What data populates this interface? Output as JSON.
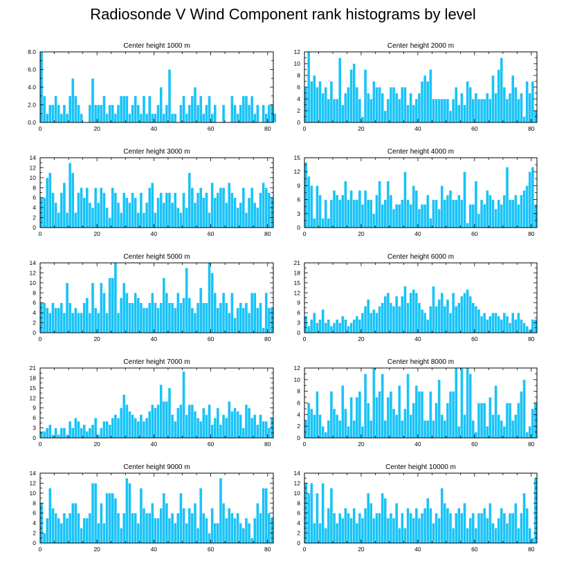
{
  "title": "Radiosonde V Wind Component rank histograms by level",
  "colors": {
    "bar": "#19c3f7",
    "bar_edge": "#ffffff",
    "frame": "#000000"
  },
  "chart_data": [
    {
      "type": "bar",
      "title": "Center height 1000 m",
      "xlim": [
        0,
        82
      ],
      "xticks": [
        0,
        20,
        40,
        60,
        80
      ],
      "ylim": [
        0,
        8
      ],
      "yticks": [
        0,
        2,
        4,
        6,
        8
      ],
      "ytick_labels": [
        "0.0",
        "2.0",
        "4.0",
        "6.0",
        "8.0"
      ],
      "values": [
        8,
        3,
        1,
        2,
        2,
        3,
        2,
        1,
        2,
        1,
        3,
        5,
        3,
        2,
        1,
        0,
        0,
        2,
        5,
        2,
        2,
        2,
        3,
        1,
        2,
        2,
        1,
        2,
        3,
        3,
        3,
        1,
        2,
        3,
        2,
        1,
        3,
        1,
        3,
        1,
        1,
        2,
        4,
        1,
        2,
        6,
        1,
        1,
        0,
        2,
        3,
        1,
        2,
        3,
        4,
        2,
        3,
        1,
        2,
        3,
        1,
        2,
        0,
        0,
        2,
        0,
        0,
        3,
        2,
        1,
        2,
        3,
        3,
        2,
        3,
        1,
        2,
        0,
        2,
        1,
        2,
        2,
        1
      ]
    },
    {
      "type": "bar",
      "title": "Center height 2000 m",
      "xlim": [
        0,
        82
      ],
      "xticks": [
        0,
        20,
        40,
        60,
        80
      ],
      "ylim": [
        0,
        12
      ],
      "yticks": [
        0,
        2,
        4,
        6,
        8,
        10,
        12
      ],
      "ytick_labels": [
        "0",
        "2",
        "4",
        "6",
        "8",
        "10",
        "12"
      ],
      "values": [
        6,
        12,
        7,
        8,
        6,
        7,
        5,
        6,
        4,
        7,
        4,
        4,
        11,
        3,
        5,
        6,
        9,
        10,
        6,
        4,
        1,
        9,
        5,
        4,
        7,
        6,
        6,
        5,
        2,
        4,
        6,
        6,
        5,
        4,
        6,
        6,
        3,
        5,
        3,
        4,
        5,
        7,
        8,
        7,
        9,
        4,
        4,
        4,
        4,
        4,
        4,
        2,
        4,
        6,
        3,
        5,
        3,
        7,
        6,
        4,
        5,
        4,
        4,
        4,
        5,
        4,
        8,
        5,
        9,
        11,
        6,
        4,
        5,
        8,
        6,
        4,
        5,
        1,
        7,
        5,
        7,
        2
      ]
    },
    {
      "type": "bar",
      "title": "Center height 3000 m",
      "xlim": [
        0,
        82
      ],
      "xticks": [
        0,
        20,
        40,
        60,
        80
      ],
      "ylim": [
        0,
        14
      ],
      "yticks": [
        0,
        2,
        4,
        6,
        8,
        10,
        12,
        14
      ],
      "ytick_labels": [
        "0",
        "2",
        "4",
        "6",
        "8",
        "10",
        "12",
        "14"
      ],
      "values": [
        6,
        6,
        10,
        11,
        7,
        5,
        3,
        7,
        9,
        3,
        13,
        11,
        3,
        7,
        8,
        6,
        8,
        5,
        4,
        8,
        5,
        8,
        7,
        4,
        2,
        8,
        7,
        5,
        3,
        7,
        6,
        5,
        7,
        6,
        3,
        7,
        3,
        5,
        8,
        9,
        3,
        6,
        7,
        5,
        7,
        7,
        5,
        7,
        4,
        3,
        7,
        4,
        11,
        8,
        5,
        7,
        8,
        6,
        7,
        3,
        9,
        6,
        7,
        8,
        8,
        5,
        9,
        7,
        6,
        4,
        5,
        8,
        3,
        6,
        8,
        5,
        4,
        7,
        9,
        8,
        7,
        6
      ]
    },
    {
      "type": "bar",
      "title": "Center height 4000 m",
      "xlim": [
        0,
        82
      ],
      "xticks": [
        0,
        20,
        40,
        60,
        80
      ],
      "ylim": [
        0,
        15
      ],
      "yticks": [
        0,
        3,
        6,
        9,
        12,
        15
      ],
      "ytick_labels": [
        "0",
        "3",
        "6",
        "9",
        "12",
        "15"
      ],
      "values": [
        14,
        11,
        9,
        2,
        9,
        7,
        2,
        6,
        2,
        6,
        8,
        7,
        6,
        7,
        10,
        6,
        8,
        6,
        6,
        8,
        5,
        8,
        6,
        6,
        3,
        7,
        10,
        5,
        6,
        10,
        7,
        4,
        5,
        5,
        6,
        12,
        6,
        5,
        9,
        8,
        4,
        5,
        5,
        7,
        2,
        6,
        6,
        4,
        9,
        6,
        7,
        8,
        6,
        6,
        7,
        6,
        12,
        1,
        5,
        5,
        10,
        3,
        6,
        5,
        8,
        7,
        6,
        4,
        6,
        5,
        7,
        13,
        6,
        6,
        7,
        5,
        7,
        8,
        9,
        12,
        13,
        5
      ]
    },
    {
      "type": "bar",
      "title": "Center height 5000 m",
      "xlim": [
        0,
        82
      ],
      "xticks": [
        0,
        20,
        40,
        60,
        80
      ],
      "ylim": [
        0,
        14
      ],
      "yticks": [
        0,
        2,
        4,
        6,
        8,
        10,
        12,
        14
      ],
      "ytick_labels": [
        "0",
        "2",
        "4",
        "6",
        "8",
        "10",
        "12",
        "14"
      ],
      "values": [
        6,
        6,
        5,
        4,
        6,
        5,
        5,
        6,
        4,
        10,
        6,
        4,
        5,
        4,
        4,
        6,
        7,
        4,
        10,
        5,
        4,
        10,
        8,
        4,
        11,
        11,
        14,
        4,
        7,
        10,
        8,
        6,
        6,
        8,
        7,
        6,
        5,
        5,
        6,
        8,
        6,
        5,
        6,
        11,
        8,
        6,
        6,
        5,
        8,
        6,
        7,
        13,
        7,
        5,
        4,
        6,
        9,
        6,
        6,
        14,
        12,
        8,
        5,
        6,
        8,
        6,
        4,
        8,
        3,
        5,
        6,
        5,
        6,
        4,
        8,
        8,
        5,
        6,
        1,
        8,
        5,
        5
      ]
    },
    {
      "type": "bar",
      "title": "Center height 6000 m",
      "xlim": [
        0,
        82
      ],
      "xticks": [
        0,
        20,
        40,
        60,
        80
      ],
      "ylim": [
        0,
        21
      ],
      "yticks": [
        0,
        3,
        6,
        9,
        12,
        15,
        18,
        21
      ],
      "ytick_labels": [
        "0",
        "3",
        "6",
        "9",
        "12",
        "15",
        "18",
        "21"
      ],
      "values": [
        5,
        2,
        4,
        6,
        3,
        4,
        7,
        3,
        4,
        2,
        3,
        4,
        3,
        5,
        4,
        2,
        3,
        4,
        5,
        4,
        6,
        8,
        10,
        6,
        7,
        6,
        8,
        9,
        11,
        12,
        9,
        8,
        11,
        8,
        11,
        14,
        9,
        12,
        13,
        12,
        9,
        7,
        6,
        4,
        8,
        14,
        8,
        10,
        12,
        8,
        10,
        6,
        12,
        8,
        9,
        11,
        12,
        13,
        11,
        9,
        8,
        7,
        5,
        6,
        4,
        5,
        6,
        6,
        5,
        4,
        6,
        5,
        3,
        6,
        4,
        6,
        4,
        3,
        2,
        1,
        4,
        4
      ]
    },
    {
      "type": "bar",
      "title": "Center height 7000 m",
      "xlim": [
        0,
        82
      ],
      "xticks": [
        0,
        20,
        40,
        60,
        80
      ],
      "ylim": [
        0,
        21
      ],
      "yticks": [
        0,
        3,
        6,
        9,
        12,
        15,
        18,
        21
      ],
      "ytick_labels": [
        "0",
        "3",
        "6",
        "9",
        "12",
        "15",
        "18",
        "21"
      ],
      "values": [
        2,
        2,
        3,
        4,
        1,
        3,
        1,
        3,
        3,
        1,
        5,
        3,
        6,
        5,
        3,
        4,
        2,
        3,
        4,
        6,
        1,
        3,
        5,
        5,
        4,
        6,
        7,
        6,
        9,
        13,
        10,
        8,
        7,
        6,
        5,
        7,
        5,
        6,
        8,
        10,
        9,
        10,
        16,
        11,
        11,
        15,
        7,
        5,
        9,
        10,
        20,
        7,
        10,
        10,
        8,
        6,
        5,
        9,
        7,
        10,
        4,
        6,
        9,
        4,
        7,
        6,
        11,
        8,
        9,
        8,
        7,
        3,
        10,
        9,
        6,
        7,
        4,
        7,
        5,
        5,
        3,
        6
      ]
    },
    {
      "type": "bar",
      "title": "Center height 8000 m",
      "xlim": [
        0,
        82
      ],
      "xticks": [
        0,
        20,
        40,
        60,
        80
      ],
      "ylim": [
        0,
        12
      ],
      "yticks": [
        0,
        2,
        4,
        6,
        8,
        10,
        12
      ],
      "ytick_labels": [
        "0",
        "2",
        "4",
        "6",
        "8",
        "10",
        "12"
      ],
      "values": [
        3,
        6,
        5,
        4,
        8,
        4,
        2,
        1,
        3,
        8,
        5,
        4,
        3,
        9,
        5,
        2,
        7,
        3,
        7,
        8,
        2,
        11,
        6,
        3,
        12,
        7,
        8,
        11,
        3,
        7,
        8,
        5,
        4,
        9,
        3,
        5,
        11,
        4,
        6,
        9,
        8,
        8,
        3,
        3,
        8,
        3,
        6,
        10,
        4,
        3,
        6,
        8,
        8,
        12,
        2,
        12,
        4,
        12,
        11,
        3,
        1,
        6,
        6,
        6,
        2,
        7,
        4,
        9,
        4,
        3,
        2,
        6,
        6,
        3,
        4,
        6,
        8,
        10,
        1,
        2,
        5,
        6
      ]
    },
    {
      "type": "bar",
      "title": "Center height 9000 m",
      "xlim": [
        0,
        82
      ],
      "xticks": [
        0,
        20,
        40,
        60,
        80
      ],
      "ylim": [
        0,
        14
      ],
      "yticks": [
        0,
        2,
        4,
        6,
        8,
        10,
        12,
        14
      ],
      "ytick_labels": [
        "0",
        "2",
        "4",
        "6",
        "8",
        "10",
        "12",
        "14"
      ],
      "values": [
        8,
        2,
        5,
        11,
        7,
        6,
        5,
        4,
        6,
        5,
        6,
        8,
        8,
        6,
        3,
        5,
        5,
        6,
        12,
        12,
        4,
        8,
        4,
        10,
        10,
        10,
        9,
        6,
        3,
        6,
        13,
        12,
        6,
        6,
        4,
        11,
        7,
        6,
        6,
        8,
        5,
        5,
        7,
        10,
        8,
        5,
        6,
        4,
        6,
        10,
        7,
        4,
        7,
        6,
        8,
        3,
        11,
        6,
        5,
        2,
        7,
        4,
        4,
        13,
        8,
        5,
        7,
        6,
        5,
        6,
        4,
        3,
        5,
        4,
        1,
        5,
        8,
        6,
        11,
        11,
        6,
        5
      ]
    },
    {
      "type": "bar",
      "title": "Center height 10000 m",
      "xlim": [
        0,
        82
      ],
      "xticks": [
        0,
        20,
        40,
        60,
        80
      ],
      "ylim": [
        0,
        14
      ],
      "yticks": [
        0,
        2,
        4,
        6,
        8,
        10,
        12,
        14
      ],
      "ytick_labels": [
        "0",
        "2",
        "4",
        "6",
        "8",
        "10",
        "12",
        "14"
      ],
      "values": [
        12,
        10,
        12,
        4,
        10,
        4,
        12,
        3,
        7,
        11,
        6,
        4,
        6,
        5,
        7,
        6,
        5,
        7,
        4,
        6,
        5,
        7,
        10,
        8,
        5,
        6,
        6,
        10,
        9,
        5,
        6,
        5,
        8,
        3,
        6,
        3,
        7,
        6,
        5,
        7,
        5,
        6,
        7,
        9,
        7,
        4,
        6,
        5,
        11,
        8,
        7,
        6,
        3,
        6,
        7,
        6,
        8,
        3,
        5,
        6,
        3,
        6,
        6,
        7,
        5,
        8,
        4,
        3,
        5,
        7,
        6,
        4,
        6,
        6,
        8,
        3,
        6,
        10,
        7,
        3,
        1,
        13
      ]
    }
  ]
}
